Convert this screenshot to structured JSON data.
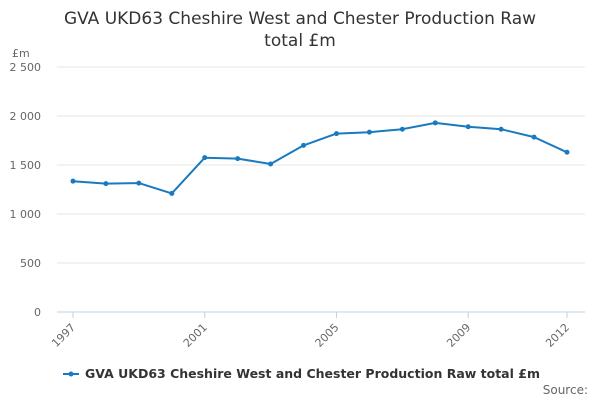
{
  "chart_data": {
    "type": "line",
    "title_line1": "GVA UKD63 Cheshire West and Chester Production Raw",
    "title_line2": "total £m",
    "ylabel": "£m",
    "xlabel": "",
    "x": [
      1997,
      1998,
      1999,
      2000,
      2001,
      2002,
      2003,
      2004,
      2005,
      2006,
      2007,
      2008,
      2009,
      2010,
      2011,
      2012
    ],
    "x_tick_labels": [
      "1997",
      "2001",
      "2005",
      "2009",
      "2012"
    ],
    "x_tick_values": [
      1997,
      2001,
      2005,
      2009,
      2012
    ],
    "y_tick_values": [
      0,
      500,
      1000,
      1500,
      2000,
      2500
    ],
    "y_tick_labels": [
      "0",
      "500",
      "1 000",
      "1 500",
      "2 000",
      "2 500"
    ],
    "ylim": [
      0,
      2500
    ],
    "grid": true,
    "series": [
      {
        "name": "GVA UKD63 Cheshire West and Chester Production Raw total £m",
        "color": "#1a7abf",
        "values": [
          1335,
          1310,
          1315,
          1210,
          1575,
          1565,
          1510,
          1700,
          1820,
          1835,
          1865,
          1930,
          1890,
          1865,
          1785,
          1630
        ]
      }
    ],
    "legend_position": "bottom",
    "source_label": "Source:"
  }
}
